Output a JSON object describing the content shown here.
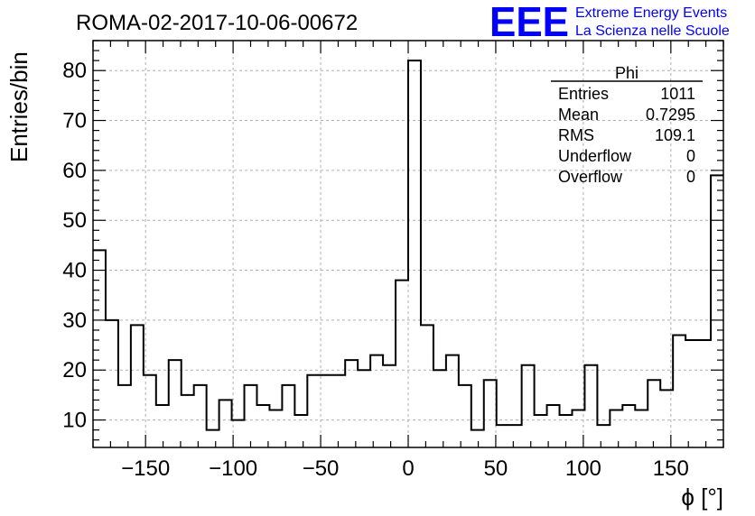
{
  "chart_data": {
    "type": "bar",
    "title": "ROMA-02-2017-10-06-00672",
    "xlabel": "ϕ [°]",
    "ylabel": "Entries/bin",
    "xlim": [
      -180,
      180
    ],
    "ylim": [
      4.5,
      86
    ],
    "grid": true,
    "bin_width": 7.2,
    "x_ticks": [
      -150,
      -100,
      -50,
      0,
      50,
      100,
      150
    ],
    "x_tick_labels": [
      "−150",
      "−100",
      "−50",
      "0",
      "50",
      "100",
      "150"
    ],
    "y_ticks": [
      10,
      20,
      30,
      40,
      50,
      60,
      70,
      80
    ],
    "y_tick_labels": [
      "10",
      "20",
      "30",
      "40",
      "50",
      "60",
      "70",
      "80"
    ],
    "values": [
      44,
      30,
      17,
      29,
      19,
      13,
      22,
      15,
      17,
      8,
      14,
      10,
      17,
      13,
      12,
      17,
      11,
      19,
      19,
      19,
      22,
      20,
      23,
      21,
      38,
      82,
      29,
      20,
      23,
      17,
      8,
      18,
      9,
      9,
      21,
      11,
      13,
      11,
      12,
      21,
      9,
      12,
      13,
      12,
      18,
      16,
      27,
      26,
      26,
      59
    ]
  },
  "stats_box": {
    "title": "Phi",
    "rows": [
      {
        "label": "Entries",
        "value": "1011"
      },
      {
        "label": "Mean",
        "value": "0.7295"
      },
      {
        "label": "RMS",
        "value": "109.1"
      },
      {
        "label": "Underflow",
        "value": "0"
      },
      {
        "label": "Overflow",
        "value": "0"
      }
    ]
  },
  "logo": {
    "mark": "EEE",
    "line1": "Extreme Energy Events",
    "line2": "La Scienza nelle Scuole",
    "color": "#0000ff"
  },
  "colors": {
    "line": "#000000",
    "grid": "#b0b0b0"
  }
}
